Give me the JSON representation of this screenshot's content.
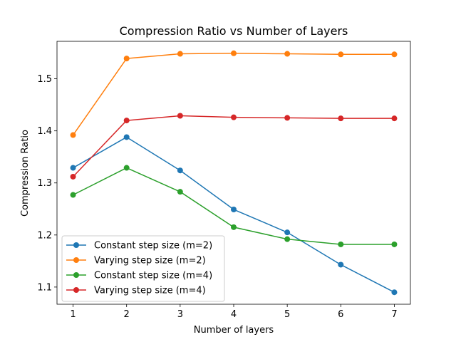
{
  "chart_data": {
    "type": "line",
    "title": "Compression Ratio vs Number of Layers",
    "xlabel": "Number of layers",
    "ylabel": "Compression Ratio",
    "x": [
      1,
      2,
      3,
      4,
      5,
      6,
      7
    ],
    "xlim": [
      0.7,
      7.3
    ],
    "ylim": [
      1.067,
      1.572
    ],
    "xticks": [
      "1",
      "2",
      "3",
      "4",
      "5",
      "6",
      "7"
    ],
    "yticks": [
      1.1,
      1.2,
      1.3,
      1.4,
      1.5
    ],
    "ytick_labels": [
      "1.1",
      "1.2",
      "1.3",
      "1.4",
      "1.5"
    ],
    "grid": false,
    "legend_position": "lower-left",
    "series": [
      {
        "name": "Constant step size (m=2)",
        "color": "#1f77b4",
        "values": [
          1.329,
          1.388,
          1.324,
          1.249,
          1.205,
          1.143,
          1.09
        ]
      },
      {
        "name": "Varying step size (m=2)",
        "color": "#ff7f0e",
        "values": [
          1.392,
          1.539,
          1.548,
          1.549,
          1.548,
          1.547,
          1.547
        ]
      },
      {
        "name": "Constant step size (m=4)",
        "color": "#2ca02c",
        "values": [
          1.277,
          1.329,
          1.283,
          1.215,
          1.192,
          1.182,
          1.182
        ]
      },
      {
        "name": "Varying step size (m=4)",
        "color": "#d62728",
        "values": [
          1.312,
          1.42,
          1.429,
          1.426,
          1.425,
          1.424,
          1.424
        ]
      }
    ]
  }
}
